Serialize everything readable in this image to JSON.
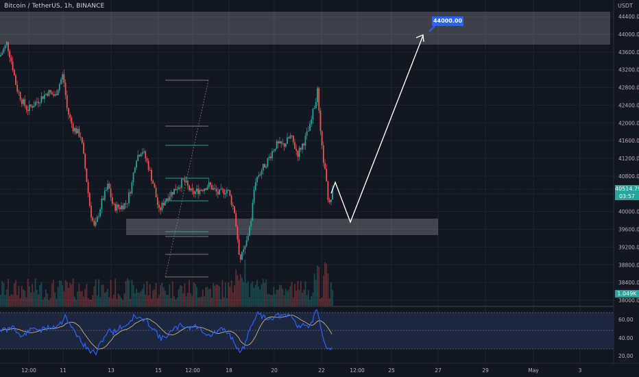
{
  "header": {
    "symbol_title": "Bitcoin / TetherUS, 1h, BINANCE",
    "quote_currency": "USDT"
  },
  "price_axis": {
    "labels": [
      "44400.00",
      "44000.00",
      "43600.00",
      "43200.00",
      "42800.00",
      "42400.00",
      "42000.00",
      "41600.00",
      "41200.00",
      "40800.00",
      "40400.00",
      "40000.00",
      "39600.00",
      "39200.00",
      "38800.00",
      "38400.00",
      "38000.00"
    ],
    "current_price": "40514.79",
    "countdown": "03:57",
    "volume_label": "1.049K"
  },
  "rsi_axis": {
    "labels": [
      "60.00",
      "40.00",
      "20.00"
    ]
  },
  "time_axis": {
    "labels": [
      "12:00",
      "11",
      "13",
      "15",
      "12:00",
      "18",
      "20",
      "22",
      "12:00",
      "25",
      "27",
      "29",
      "May",
      "3"
    ]
  },
  "annotations": {
    "target_label": "44000.00"
  },
  "colors": {
    "background": "#131722",
    "up": "#26a69a",
    "down": "#ef5350",
    "zone": "#ffffff",
    "rsi_line": "#2962ff",
    "rsi_ma": "#c9b67a",
    "rsi_band": "#1e2a44",
    "projection": "#ffffff",
    "fib": "#26a69a"
  }
}
